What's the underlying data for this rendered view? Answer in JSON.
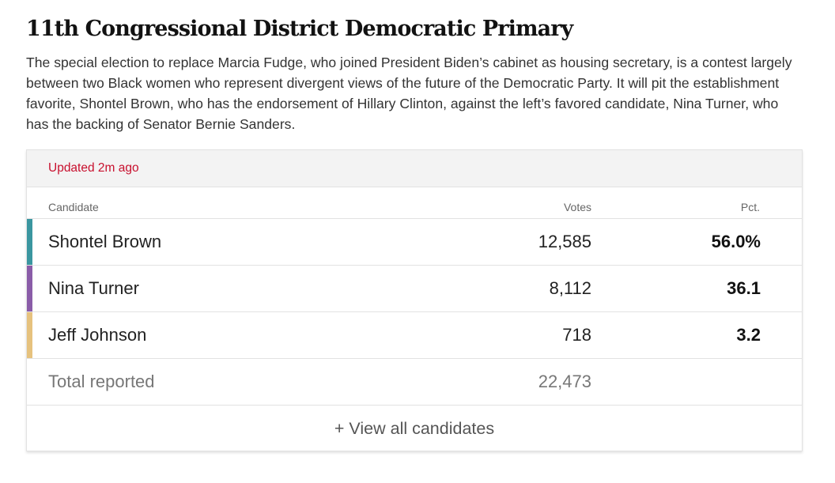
{
  "headline": "11th Congressional District Democratic Primary",
  "intro": "The special election to replace Marcia Fudge, who joined President Biden’s cabinet as housing secretary, is a contest largely between two Black women who represent divergent views of the future of the Democratic Party. It will pit the establishment favorite, Shontel Brown, who has the endorsement of Hillary Clinton, against the left’s favored candidate, Nina Turner, who has the backing of Senator Bernie Sanders.",
  "results": {
    "updated": "Updated 2m ago",
    "columns": {
      "candidate": "Candidate",
      "votes": "Votes",
      "pct": "Pct."
    },
    "candidates": [
      {
        "name": "Shontel Brown",
        "votes": "12,585",
        "pct": "56.0%",
        "color": "#3a96a0"
      },
      {
        "name": "Nina Turner",
        "votes": "8,112",
        "pct": "36.1",
        "color": "#8a5ca8"
      },
      {
        "name": "Jeff Johnson",
        "votes": "718",
        "pct": "3.2",
        "color": "#e6c27e"
      }
    ],
    "total": {
      "label": "Total reported",
      "votes": "22,473"
    },
    "view_all": "+ View all candidates"
  }
}
